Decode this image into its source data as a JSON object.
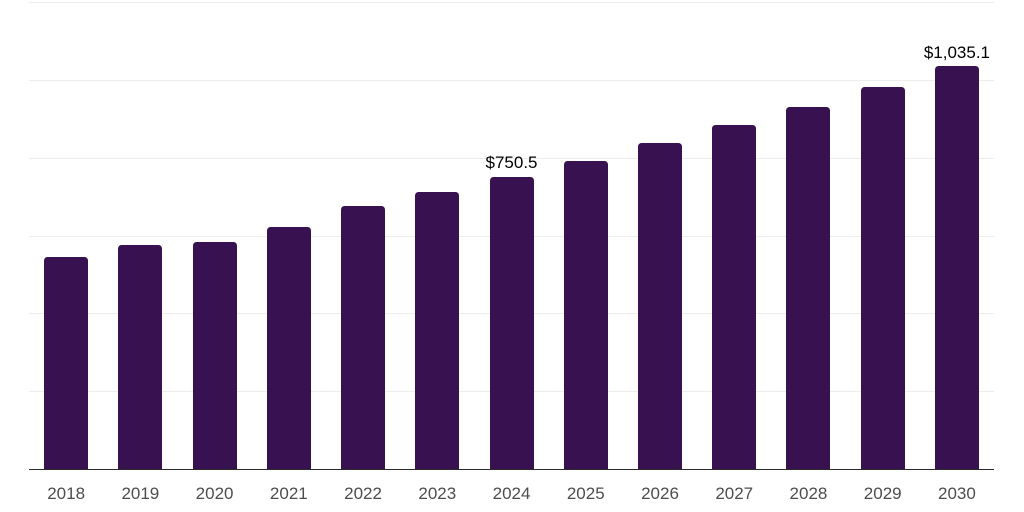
{
  "chart": {
    "background": "#ffffff",
    "bar_color": "#371150",
    "gridline_color": "#ededed",
    "axis_color": "#2b2b2b",
    "tick_label_color": "#4d4d4d",
    "data_label_color": "#000000"
  },
  "chart_data": {
    "type": "bar",
    "title": "",
    "xlabel": "",
    "ylabel": "",
    "categories": [
      "2018",
      "2019",
      "2020",
      "2021",
      "2022",
      "2023",
      "2024",
      "2025",
      "2026",
      "2027",
      "2028",
      "2029",
      "2030"
    ],
    "values": [
      545,
      576,
      583,
      621,
      677,
      713,
      750.5,
      792,
      837,
      883,
      931,
      982,
      1035.1
    ],
    "data_labels": [
      "",
      "",
      "",
      "",
      "",
      "",
      "$750.5",
      "",
      "",
      "",
      "",
      "",
      "$1,035.1"
    ],
    "ylim": [
      0,
      1200
    ],
    "gridlines": [
      200,
      400,
      600,
      800,
      1000,
      1200
    ],
    "grid": "horizontal",
    "legend": "none",
    "y_axis_tick_labels": "none"
  }
}
